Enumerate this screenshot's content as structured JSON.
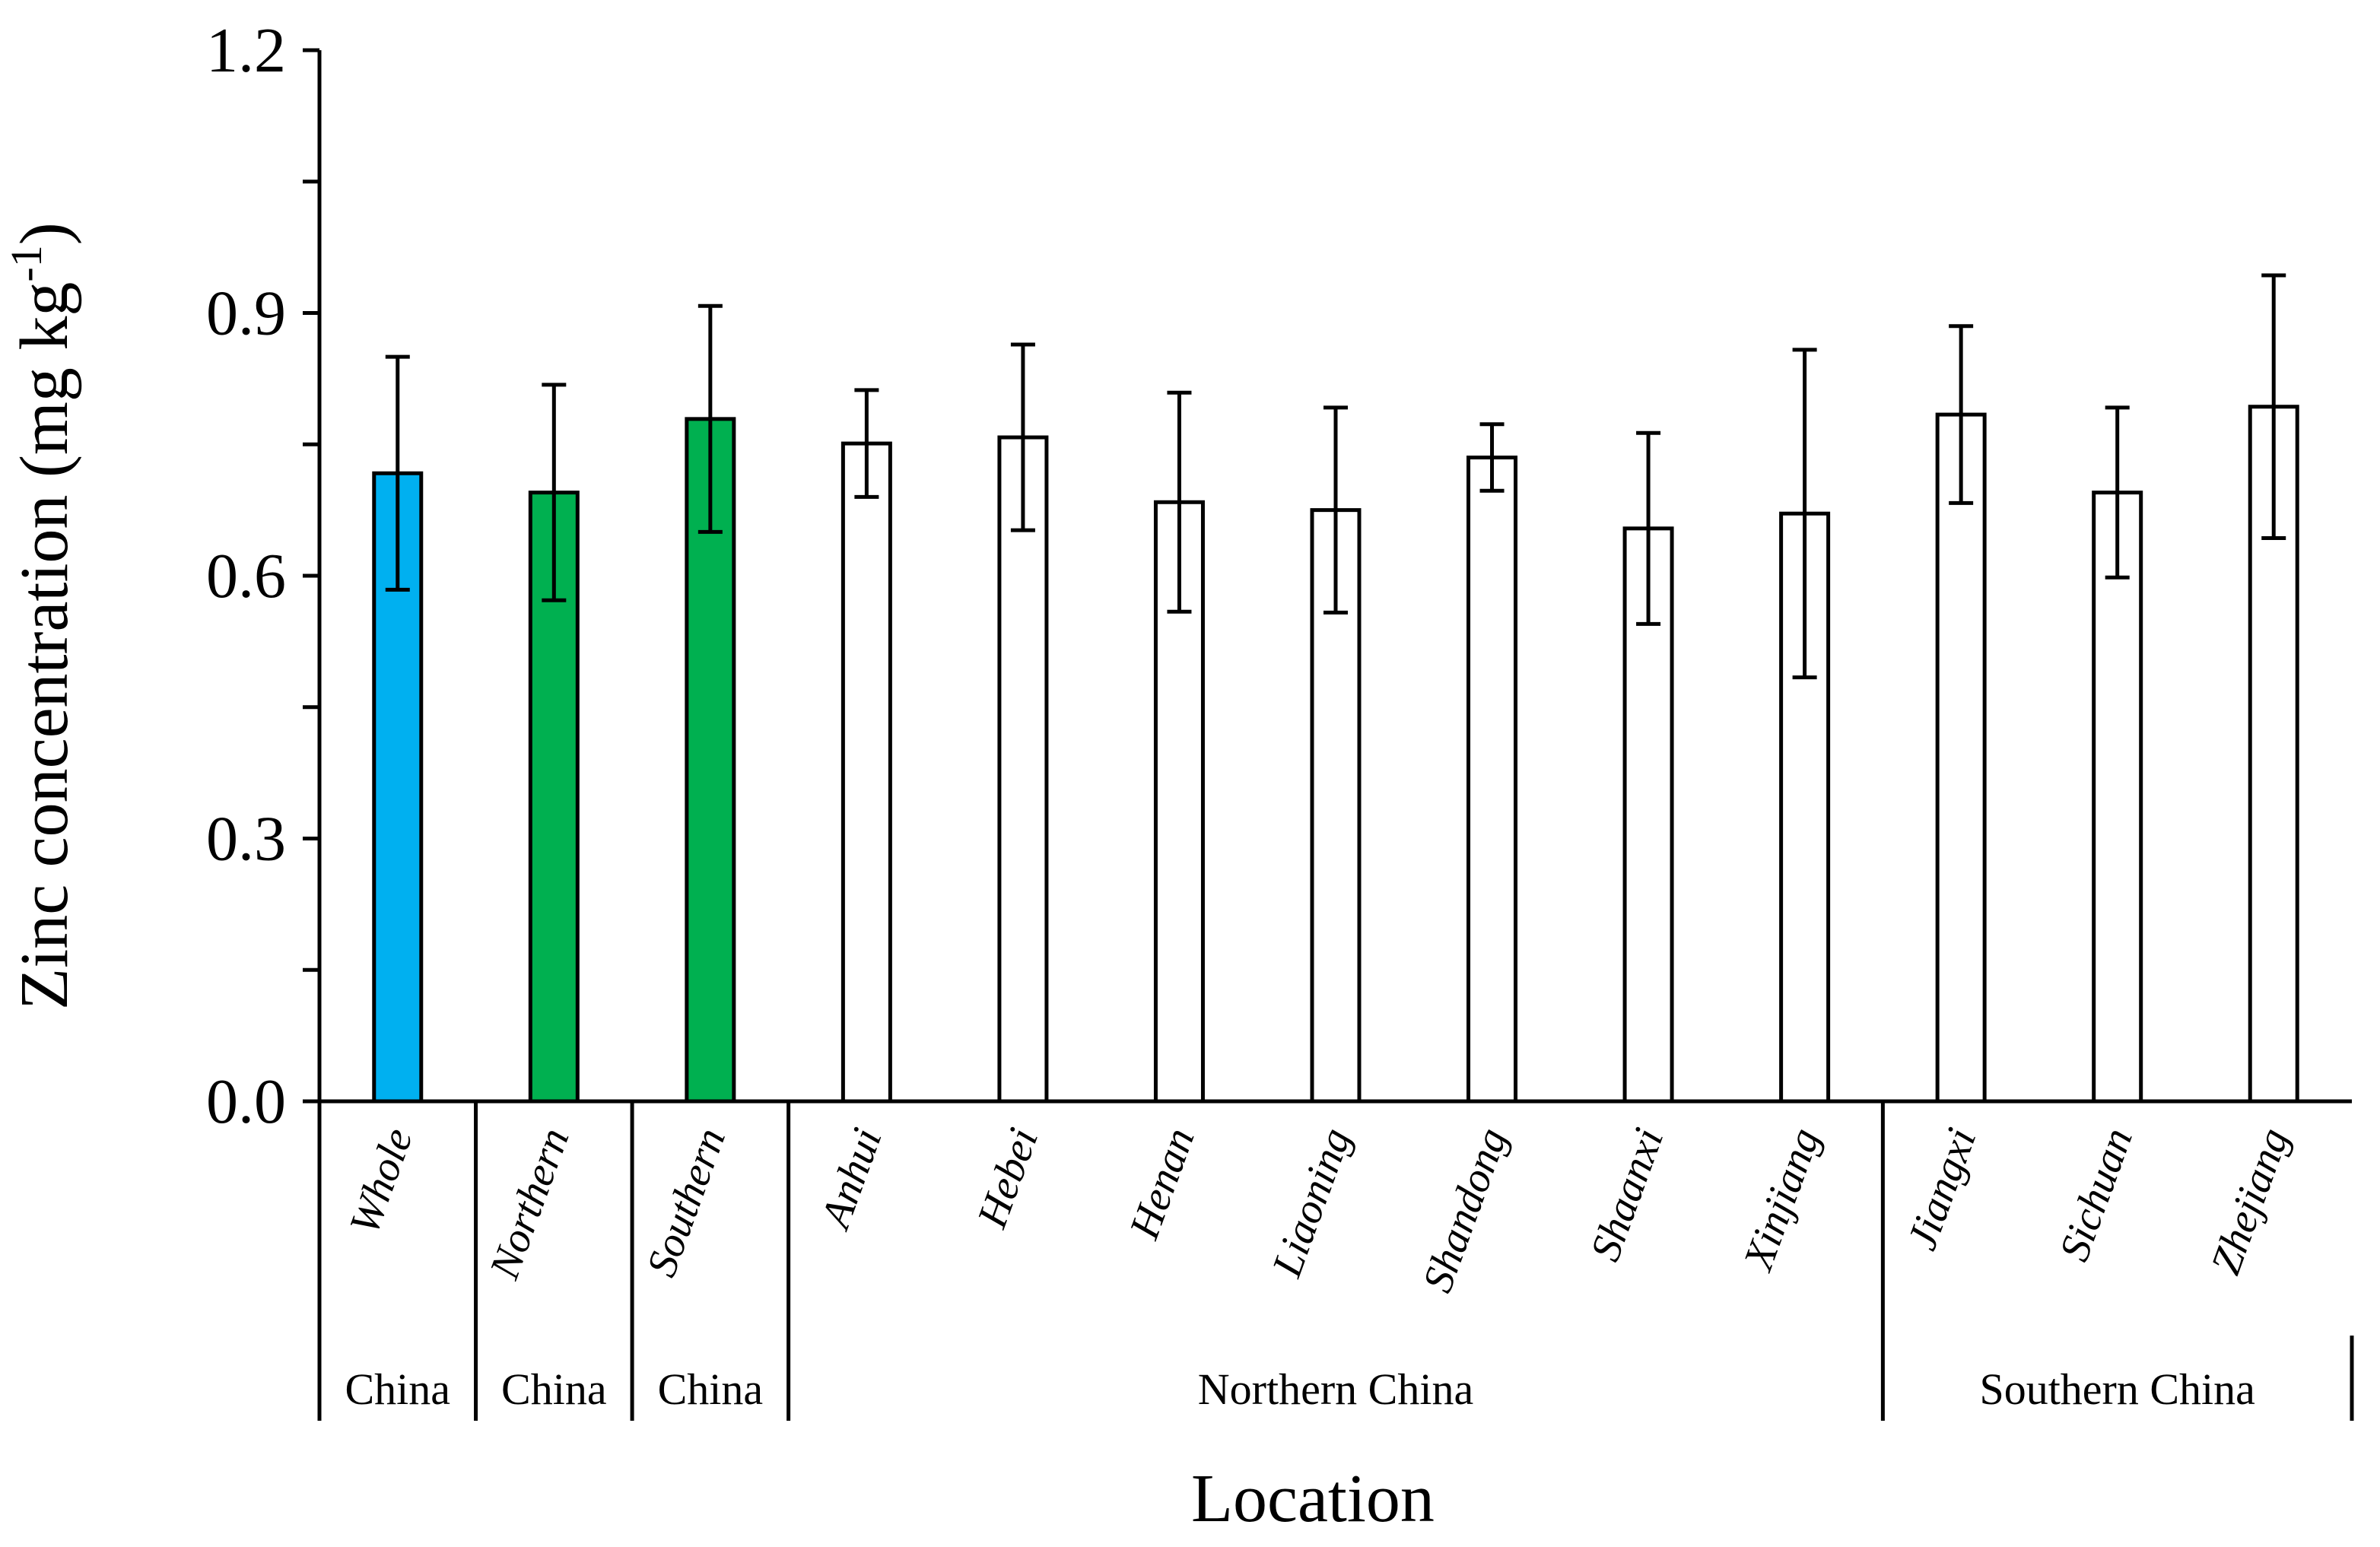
{
  "chart_data": {
    "type": "bar",
    "title": "",
    "xlabel": "Location",
    "ylabel": "Zinc concentration (mg kg",
    "ylabel_sup": "-1",
    "ylabel_close": ")",
    "ylim": [
      0,
      1.2
    ],
    "yticks": [
      "0.0",
      "0.3",
      "0.6",
      "0.9",
      "1.2"
    ],
    "ytick_values": [
      0,
      0.3,
      0.6,
      0.9,
      1.2
    ],
    "grid": false,
    "legend": "none",
    "categories": [
      "Whole",
      "Northern",
      "Southern",
      "Anhui",
      "Hebei",
      "Henan",
      "Liaoning",
      "Shandong",
      "Shaanxi",
      "Xinjiang",
      "Jiangxi",
      "Sichuan",
      "Zhejiang"
    ],
    "values": [
      0.717,
      0.695,
      0.779,
      0.751,
      0.758,
      0.684,
      0.675,
      0.735,
      0.654,
      0.671,
      0.784,
      0.695,
      0.793
    ],
    "errors": [
      0.133,
      0.123,
      0.129,
      0.061,
      0.106,
      0.125,
      0.117,
      0.038,
      0.109,
      0.187,
      0.101,
      0.097,
      0.15
    ],
    "bar_colors": [
      "#00b0f0",
      "#00b050",
      "#00b050",
      "#ffffff",
      "#ffffff",
      "#ffffff",
      "#ffffff",
      "#ffffff",
      "#ffffff",
      "#ffffff",
      "#ffffff",
      "#ffffff",
      "#ffffff"
    ],
    "groups": [
      {
        "label": "China",
        "start": 0,
        "end": 0
      },
      {
        "label": "China",
        "start": 1,
        "end": 1
      },
      {
        "label": "China",
        "start": 2,
        "end": 2
      },
      {
        "label": "Northern China",
        "start": 3,
        "end": 9
      },
      {
        "label": "Southern China",
        "start": 10,
        "end": 12
      }
    ]
  }
}
